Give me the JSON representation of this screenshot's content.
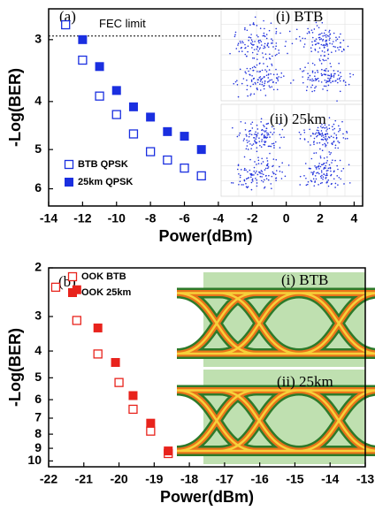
{
  "chart_data": [
    {
      "type": "scatter",
      "panel_label": "(a)",
      "fec_label": "FEC limit",
      "fec_limit": 2.95,
      "inset_labels": [
        "(i) BTB",
        "(ii) 25km"
      ],
      "x_label": "Power(dBm)",
      "y_label": "-Log(BER)",
      "xlim": [
        -14,
        4.5
      ],
      "xticks": [
        -14,
        -12,
        -10,
        -8,
        -6,
        -4,
        -2,
        0,
        2,
        4
      ],
      "ylim": [
        2.6,
        6.5
      ],
      "yticks": [
        3,
        4,
        5,
        6
      ],
      "log_y": true,
      "y_inverted": true,
      "series": [
        {
          "name": "BTB QPSK",
          "color": "#1a2fe0",
          "marker": "open",
          "x": [
            -13,
            -12,
            -11,
            -10,
            -9,
            -8,
            -7,
            -6,
            -5
          ],
          "values": [
            2.8,
            3.3,
            3.9,
            4.25,
            4.65,
            5.05,
            5.25,
            5.45,
            5.65
          ]
        },
        {
          "name": "25km QPSK",
          "color": "#1a2fe0",
          "marker": "filled",
          "x": [
            -12,
            -11,
            -10,
            -9,
            -8,
            -7,
            -6,
            -5
          ],
          "values": [
            3.0,
            3.4,
            3.8,
            4.1,
            4.3,
            4.6,
            4.7,
            5.0
          ]
        }
      ]
    },
    {
      "type": "scatter",
      "panel_label": "(b)",
      "inset_labels": [
        "(i) BTB",
        "(ii) 25km"
      ],
      "x_label": "Power(dBm)",
      "y_label": "-Log(BER)",
      "xlim": [
        -22,
        -13
      ],
      "xticks": [
        -22,
        -21,
        -20,
        -19,
        -18,
        -17,
        -16,
        -15,
        -14,
        -13
      ],
      "ylim": [
        2,
        10.5
      ],
      "yticks": [
        2,
        3,
        4,
        5,
        6,
        7,
        8,
        9,
        10
      ],
      "log_y": true,
      "y_inverted": true,
      "series": [
        {
          "name": "OOK BTB",
          "color": "#e8231c",
          "marker": "open",
          "x": [
            -21.8,
            -21.2,
            -20.6,
            -20.0,
            -19.6,
            -19.1,
            -18.6
          ],
          "values": [
            2.35,
            3.1,
            4.1,
            5.2,
            6.5,
            7.8,
            9.4
          ]
        },
        {
          "name": "OOK 25km",
          "color": "#e8231c",
          "marker": "filled",
          "x": [
            -21.2,
            -20.6,
            -20.1,
            -19.6,
            -19.1,
            -18.6
          ],
          "values": [
            2.4,
            3.3,
            4.4,
            5.8,
            7.3,
            9.2
          ]
        }
      ]
    }
  ]
}
